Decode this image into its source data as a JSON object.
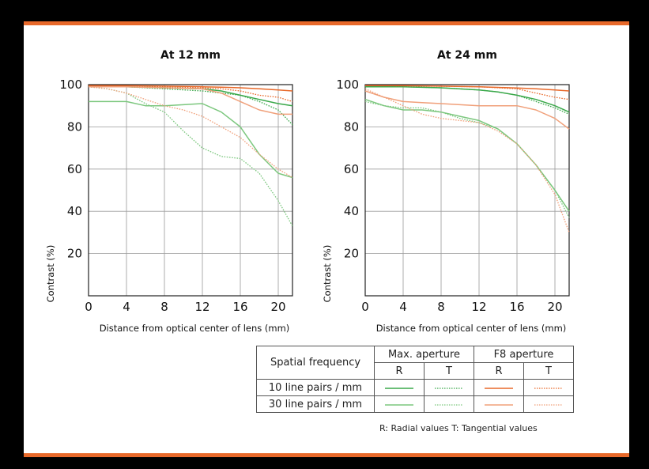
{
  "legend": {
    "header_freq": "Spatial frequency",
    "header_max": "Max. aperture",
    "header_f8": "F8 aperture",
    "r": "R",
    "t": "T",
    "row1": "10 line pairs / mm",
    "row2": "30 line pairs / mm",
    "note": "R: Radial values  T: Tangential values"
  },
  "colors": {
    "green": "#3aa84a",
    "orange": "#e8692a",
    "light_green": "#7cc77e",
    "light_orange": "#f0a07a",
    "frame_accent": "#e8692a"
  },
  "chart_data": [
    {
      "type": "line",
      "title": "At 12 mm",
      "xlabel": "Distance from optical center of lens (mm)",
      "ylabel": "Contrast (%)",
      "xlim": [
        0,
        21.5
      ],
      "ylim": [
        0,
        100
      ],
      "xticks": [
        0,
        4,
        8,
        12,
        16,
        20
      ],
      "yticks": [
        20,
        40,
        60,
        80,
        100
      ],
      "grid": true,
      "series": [
        {
          "name": "10 line pairs / mm, Max. aperture, R",
          "color": "#3aa84a",
          "dash": "solid",
          "x": [
            0,
            4,
            8,
            12,
            14,
            16,
            18,
            20,
            21.5
          ],
          "y": [
            99,
            99,
            98.5,
            98,
            97,
            95,
            93,
            91,
            90
          ]
        },
        {
          "name": "10 line pairs / mm, Max. aperture, T",
          "color": "#3aa84a",
          "dash": "dotted",
          "x": [
            0,
            4,
            8,
            12,
            14,
            16,
            18,
            20,
            21.5
          ],
          "y": [
            99,
            99,
            98,
            97,
            96,
            95,
            92,
            88,
            81
          ]
        },
        {
          "name": "10 line pairs / mm, F8 aperture, R",
          "color": "#e8692a",
          "dash": "solid",
          "x": [
            0,
            4,
            8,
            12,
            14,
            16,
            18,
            20,
            21.5
          ],
          "y": [
            99.5,
            99.5,
            99.3,
            99,
            98.8,
            98.5,
            98,
            97.5,
            97
          ]
        },
        {
          "name": "10 line pairs / mm, F8 aperture, T",
          "color": "#e8692a",
          "dash": "dotted",
          "x": [
            0,
            4,
            8,
            12,
            14,
            16,
            18,
            20,
            21.5
          ],
          "y": [
            99.5,
            99.3,
            99,
            98.5,
            98,
            97,
            95,
            94,
            92
          ]
        },
        {
          "name": "30 line pairs / mm, Max. aperture, R",
          "color": "#7cc77e",
          "dash": "solid",
          "x": [
            0,
            2,
            4,
            6,
            8,
            10,
            12,
            14,
            16,
            18,
            20,
            21.5
          ],
          "y": [
            92,
            92,
            92,
            90,
            90,
            90.5,
            91,
            87,
            80,
            67,
            58,
            56
          ]
        },
        {
          "name": "30 line pairs / mm, Max. aperture, T",
          "color": "#7cc77e",
          "dash": "dotted",
          "x": [
            0,
            2,
            4,
            6,
            8,
            10,
            12,
            14,
            16,
            18,
            20,
            21.5
          ],
          "y": [
            99,
            98,
            96,
            91,
            87,
            78,
            70,
            66,
            65,
            58,
            45,
            33
          ]
        },
        {
          "name": "30 line pairs / mm, F8 aperture, R",
          "color": "#f0a07a",
          "dash": "solid",
          "x": [
            0,
            4,
            8,
            12,
            14,
            16,
            18,
            20,
            21.5
          ],
          "y": [
            99,
            99,
            98.5,
            98,
            96,
            92,
            88,
            86,
            86
          ]
        },
        {
          "name": "30 line pairs / mm, F8 aperture, T",
          "color": "#f0a07a",
          "dash": "dotted",
          "x": [
            0,
            2,
            4,
            6,
            8,
            10,
            12,
            14,
            16,
            18,
            20,
            21.5
          ],
          "y": [
            99,
            98,
            96,
            93,
            90,
            88,
            85,
            80,
            75,
            67,
            60,
            56
          ]
        }
      ]
    },
    {
      "type": "line",
      "title": "At 24 mm",
      "xlabel": "Distance from optical center of lens (mm)",
      "ylabel": "Contrast (%)",
      "xlim": [
        0,
        21.5
      ],
      "ylim": [
        0,
        100
      ],
      "xticks": [
        0,
        4,
        8,
        12,
        16,
        20
      ],
      "yticks": [
        20,
        40,
        60,
        80,
        100
      ],
      "grid": true,
      "series": [
        {
          "name": "10 line pairs / mm, Max. aperture, R",
          "color": "#3aa84a",
          "dash": "solid",
          "x": [
            0,
            4,
            8,
            12,
            14,
            16,
            18,
            20,
            21.5
          ],
          "y": [
            99,
            99,
            98.5,
            97.5,
            96.5,
            95,
            93,
            90,
            87
          ]
        },
        {
          "name": "10 line pairs / mm, Max. aperture, T",
          "color": "#3aa84a",
          "dash": "dotted",
          "x": [
            0,
            4,
            8,
            12,
            14,
            16,
            18,
            20,
            21.5
          ],
          "y": [
            99,
            99,
            98.5,
            97.5,
            96.5,
            95,
            92,
            89,
            86
          ]
        },
        {
          "name": "10 line pairs / mm, F8 aperture, R",
          "color": "#e8692a",
          "dash": "solid",
          "x": [
            0,
            4,
            8,
            12,
            14,
            16,
            18,
            20,
            21.5
          ],
          "y": [
            99.5,
            99.5,
            99.3,
            99,
            98.7,
            98.4,
            98,
            97.5,
            97
          ]
        },
        {
          "name": "10 line pairs / mm, F8 aperture, T",
          "color": "#e8692a",
          "dash": "dotted",
          "x": [
            0,
            4,
            8,
            12,
            14,
            16,
            18,
            20,
            21.5
          ],
          "y": [
            99.5,
            99.4,
            99.2,
            99,
            98.5,
            98,
            96,
            94,
            93
          ]
        },
        {
          "name": "30 line pairs / mm, Max. aperture, R",
          "color": "#7cc77e",
          "dash": "solid",
          "x": [
            0,
            2,
            4,
            6,
            8,
            10,
            12,
            14,
            16,
            18,
            20,
            21.5
          ],
          "y": [
            93,
            90,
            88,
            88,
            87,
            85,
            83,
            79,
            72,
            62,
            50,
            40
          ]
        },
        {
          "name": "30 line pairs / mm, Max. aperture, T",
          "color": "#7cc77e",
          "dash": "dotted",
          "x": [
            0,
            2,
            4,
            6,
            8,
            10,
            12,
            14,
            16,
            18,
            20,
            21.5
          ],
          "y": [
            92,
            90,
            89,
            89,
            87,
            84,
            82,
            79,
            72,
            62,
            50,
            37
          ]
        },
        {
          "name": "30 line pairs / mm, F8 aperture, R",
          "color": "#f0a07a",
          "dash": "solid",
          "x": [
            0,
            2,
            4,
            6,
            8,
            10,
            12,
            14,
            16,
            18,
            20,
            21.5
          ],
          "y": [
            97,
            94,
            92,
            91.5,
            91,
            90.5,
            90,
            90,
            90,
            88,
            84,
            79
          ]
        },
        {
          "name": "30 line pairs / mm, F8 aperture, T",
          "color": "#f0a07a",
          "dash": "dotted",
          "x": [
            0,
            2,
            4,
            6,
            8,
            10,
            12,
            14,
            16,
            18,
            20,
            21.5
          ],
          "y": [
            98,
            94,
            90,
            86,
            84,
            83,
            82,
            78,
            72,
            62,
            48,
            30
          ]
        }
      ]
    }
  ]
}
